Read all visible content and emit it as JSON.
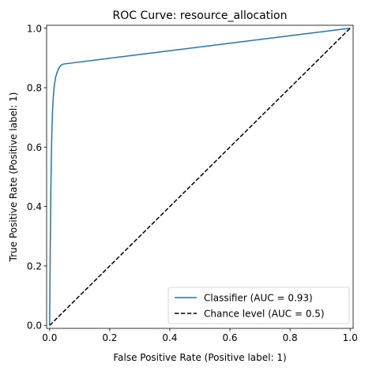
{
  "chart_data": {
    "type": "line",
    "title": "ROC Curve: resource_allocation",
    "xlabel": "False Positive Rate (Positive label: 1)",
    "ylabel": "True Positive Rate (Positive label: 1)",
    "xlim": [
      -0.01,
      1.01
    ],
    "ylim": [
      -0.01,
      1.01
    ],
    "xticks": [
      0.0,
      0.2,
      0.4,
      0.6,
      0.8,
      1.0
    ],
    "yticks": [
      0.0,
      0.2,
      0.4,
      0.6,
      0.8,
      1.0
    ],
    "xtick_labels": [
      "0.0",
      "0.2",
      "0.4",
      "0.6",
      "0.8",
      "1.0"
    ],
    "ytick_labels": [
      "0.0",
      "0.2",
      "0.4",
      "0.6",
      "0.8",
      "1.0"
    ],
    "grid": false,
    "legend_position": "lower-right",
    "series": [
      {
        "name": "Classifier (AUC = 0.93)",
        "color": "#1f77b4",
        "style": "solid",
        "x": [
          0.0,
          0.002,
          0.004,
          0.006,
          0.008,
          0.01,
          0.013,
          0.016,
          0.02,
          0.025,
          0.03,
          0.035,
          0.04,
          0.045,
          0.05,
          1.0
        ],
        "y": [
          0.0,
          0.25,
          0.45,
          0.58,
          0.67,
          0.73,
          0.78,
          0.81,
          0.835,
          0.852,
          0.864,
          0.872,
          0.877,
          0.879,
          0.88,
          1.0
        ]
      },
      {
        "name": "Chance level (AUC = 0.5)",
        "color": "#000000",
        "style": "dashed",
        "x": [
          0.0,
          1.0
        ],
        "y": [
          0.0,
          1.0
        ]
      }
    ]
  }
}
